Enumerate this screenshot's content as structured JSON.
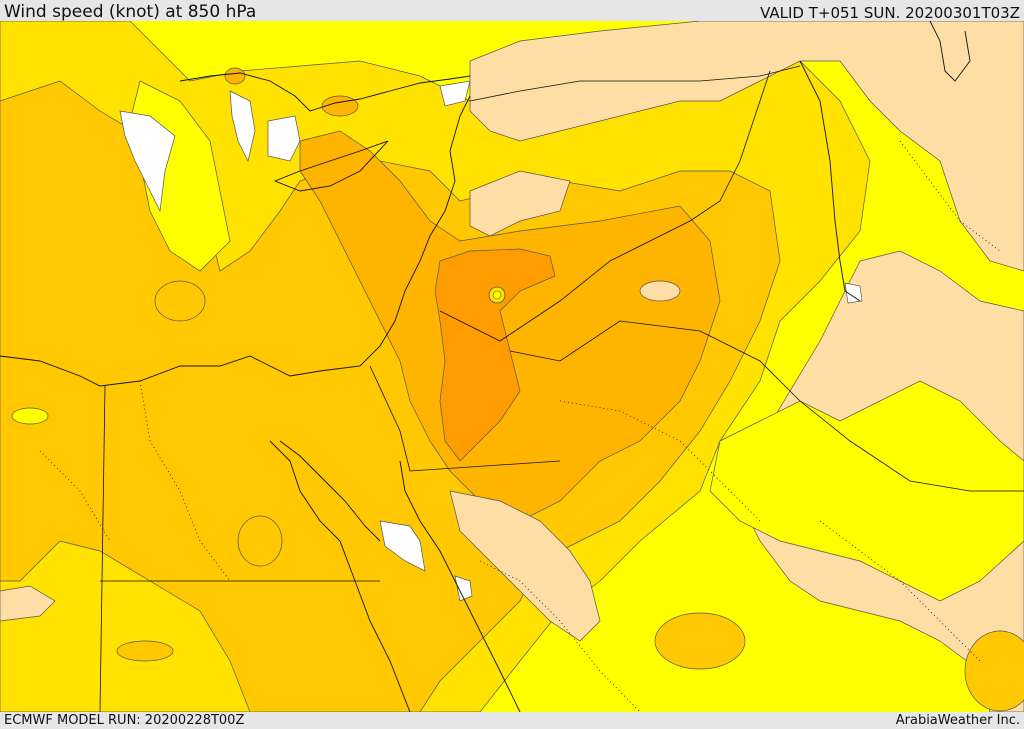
{
  "header": {
    "title": "Wind speed (knot) at 850 hPa",
    "valid_time": "VALID T+051 SUN. 20200301T03Z"
  },
  "footer": {
    "model_run": "ECMWF MODEL RUN: 20200228T00Z",
    "credit": "ArabiaWeather Inc."
  },
  "map": {
    "field": "wind speed 850 hPa",
    "colors": {
      "calm_white": "#ffffff",
      "light_tan": "#ffdea6",
      "yellow": "#ffff00",
      "gold_light": "#ffe200",
      "gold": "#ffc800",
      "orange_light": "#ffb400",
      "orange": "#ff9d00",
      "core": "#ff8c00"
    }
  }
}
